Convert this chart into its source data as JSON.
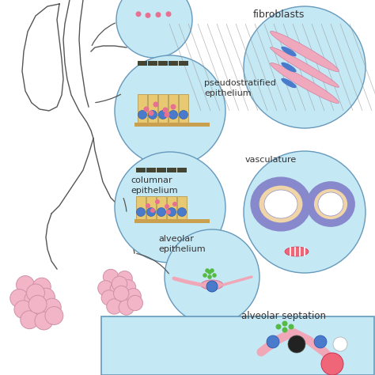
{
  "bg_color": "#ffffff",
  "circle_bg": "#c5e8f5",
  "circle_edge": "#6699bb",
  "pink_cell": "#f2a8bc",
  "tan_cell": "#e8c880",
  "blue_dot": "#4a7acc",
  "pink_dot": "#e87090",
  "dark_tip": "#555544",
  "floor_color": "#c8a860",
  "vessel_tan": "#f0d8a8",
  "vessel_purple": "#9090c8",
  "tree_color": "#555555",
  "alveoli_pink": "#f0b8c8",
  "alveoli_edge": "#d090a8",
  "font_size": 8,
  "font_color": "#333333",
  "labels": {
    "pseudostratified": [
      "pseudostratified",
      "epithelium"
    ],
    "fibroblasts": [
      "fibroblasts"
    ],
    "columnar": [
      "columnar",
      "epithelium"
    ],
    "vasculature": [
      "vasculature"
    ],
    "alveolar_ep": [
      "alveolar",
      "epithelium"
    ],
    "alveolar_sep": [
      "alveolar septation"
    ]
  }
}
